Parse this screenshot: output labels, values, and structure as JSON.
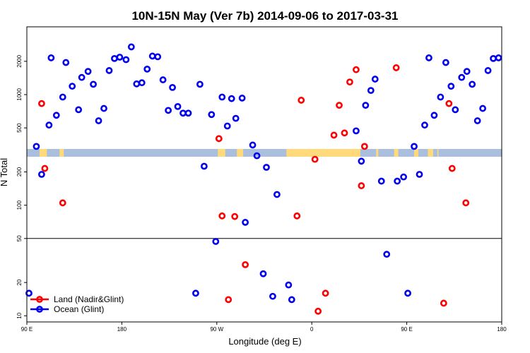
{
  "chart_data": {
    "type": "scatter",
    "title": "10N-15N May (Ver 7b)   2014-09-06 to 2017-03-31",
    "xlabel": "Longitude (deg E)",
    "ylabel": "N Total",
    "x_tick_labels": [
      {
        "x": 0,
        "label": "90 E"
      },
      {
        "x": 90,
        "label": "180"
      },
      {
        "x": 180,
        "label": "90 W"
      },
      {
        "x": 270,
        "label": "0"
      },
      {
        "x": 360,
        "label": "90 E"
      },
      {
        "x": 450,
        "label": "180"
      }
    ],
    "y_scale": "log",
    "y_tick_labels": [
      "10",
      "20",
      "50",
      "100",
      "200",
      "500",
      "1000",
      "2000"
    ],
    "y_ticks": [
      10,
      20,
      50,
      100,
      200,
      500,
      1000,
      2000
    ],
    "xlim": [
      0,
      450
    ],
    "ylim": [
      8.8,
      4100
    ],
    "reference_line_y": 50,
    "legend": {
      "placement": "bottom-left",
      "entries": [
        "Land (Nadir&Glint)",
        "Ocean (Glint)"
      ]
    },
    "colors": {
      "land": "#ff0000",
      "ocean": "#0000ee",
      "band": "#a9bfdd",
      "land_mask": "#ffd97a"
    },
    "series": [
      {
        "name": "Land (Nadir&Glint)",
        "points": [
          [
            14,
            830
          ],
          [
            17,
            215
          ],
          [
            34,
            105
          ],
          [
            182,
            400
          ],
          [
            185,
            80
          ],
          [
            191,
            14
          ],
          [
            197,
            79
          ],
          [
            207,
            29
          ],
          [
            256,
            80
          ],
          [
            260,
            890
          ],
          [
            273,
            260
          ],
          [
            276,
            11
          ],
          [
            283,
            16
          ],
          [
            291,
            430
          ],
          [
            296,
            800
          ],
          [
            301,
            450
          ],
          [
            306,
            1300
          ],
          [
            312,
            1680
          ],
          [
            317,
            150
          ],
          [
            320,
            340
          ],
          [
            350,
            1750
          ],
          [
            395,
            13
          ],
          [
            400,
            830
          ],
          [
            403,
            215
          ],
          [
            416,
            105
          ]
        ]
      },
      {
        "name": "Ocean (Glint)",
        "points": [
          [
            2,
            16
          ],
          [
            9,
            340
          ],
          [
            14,
            190
          ],
          [
            21,
            530
          ],
          [
            23,
            2150
          ],
          [
            28,
            650
          ],
          [
            34,
            950
          ],
          [
            37,
            1950
          ],
          [
            43,
            1190
          ],
          [
            49,
            730
          ],
          [
            52,
            1430
          ],
          [
            58,
            1620
          ],
          [
            63,
            1240
          ],
          [
            68,
            580
          ],
          [
            73,
            750
          ],
          [
            78,
            1650
          ],
          [
            83,
            2120
          ],
          [
            88,
            2180
          ],
          [
            94,
            2070
          ],
          [
            99,
            2700
          ],
          [
            104,
            1250
          ],
          [
            109,
            1280
          ],
          [
            114,
            1700
          ],
          [
            119,
            2230
          ],
          [
            124,
            2200
          ],
          [
            129,
            1360
          ],
          [
            134,
            720
          ],
          [
            138,
            1160
          ],
          [
            143,
            780
          ],
          [
            148,
            680
          ],
          [
            153,
            680
          ],
          [
            160,
            16
          ],
          [
            164,
            1240
          ],
          [
            168,
            225
          ],
          [
            175,
            660
          ],
          [
            179,
            47
          ],
          [
            185,
            950
          ],
          [
            190,
            520
          ],
          [
            194,
            920
          ],
          [
            198,
            610
          ],
          [
            204,
            930
          ],
          [
            207,
            70
          ],
          [
            214,
            350
          ],
          [
            218,
            280
          ],
          [
            224,
            24
          ],
          [
            227,
            220
          ],
          [
            233,
            15
          ],
          [
            237,
            125
          ],
          [
            248,
            19
          ],
          [
            251,
            14
          ],
          [
            312,
            470
          ],
          [
            317,
            250
          ],
          [
            321,
            800
          ],
          [
            326,
            1090
          ],
          [
            330,
            1380
          ],
          [
            336,
            165
          ],
          [
            341,
            36
          ],
          [
            351,
            165
          ],
          [
            357,
            180
          ],
          [
            361,
            16
          ],
          [
            367,
            340
          ],
          [
            372,
            190
          ],
          [
            377,
            530
          ],
          [
            381,
            2150
          ],
          [
            386,
            650
          ],
          [
            392,
            950
          ],
          [
            397,
            1950
          ],
          [
            402,
            1190
          ],
          [
            406,
            730
          ],
          [
            412,
            1430
          ],
          [
            417,
            1620
          ],
          [
            422,
            1240
          ],
          [
            427,
            580
          ],
          [
            432,
            750
          ],
          [
            437,
            1650
          ],
          [
            442,
            2120
          ],
          [
            447,
            2150
          ]
        ]
      }
    ]
  }
}
